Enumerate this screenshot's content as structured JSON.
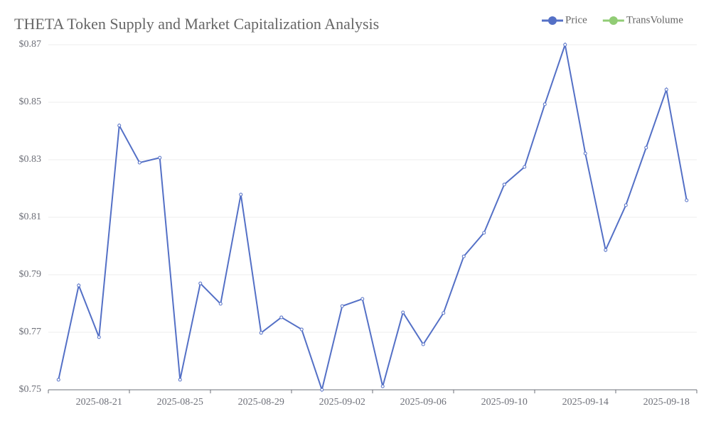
{
  "chart_data": {
    "type": "line",
    "title": "THETA Token Supply and Market Capitalization Analysis",
    "categories": [
      "2025-08-19",
      "2025-08-20",
      "2025-08-21",
      "2025-08-22",
      "2025-08-23",
      "2025-08-24",
      "2025-08-25",
      "2025-08-26",
      "2025-08-27",
      "2025-08-28",
      "2025-08-29",
      "2025-08-30",
      "2025-08-31",
      "2025-09-01",
      "2025-09-02",
      "2025-09-03",
      "2025-09-04",
      "2025-09-05",
      "2025-09-06",
      "2025-09-07",
      "2025-09-08",
      "2025-09-09",
      "2025-09-10",
      "2025-09-11",
      "2025-09-12",
      "2025-09-13",
      "2025-09-14",
      "2025-09-15",
      "2025-09-16",
      "2025-09-17",
      "2025-09-18",
      "2025-09-19"
    ],
    "series": [
      {
        "name": "Price",
        "color": "#5470c6",
        "values": [
          0.7535,
          0.7863,
          0.7683,
          0.8419,
          0.829,
          0.8307,
          0.7535,
          0.787,
          0.7799,
          0.8179,
          0.7698,
          0.7752,
          0.771,
          0.75,
          0.7791,
          0.7816,
          0.7512,
          0.7769,
          0.7658,
          0.7767,
          0.7964,
          0.8046,
          0.8214,
          0.8275,
          0.8493,
          0.87,
          0.8322,
          0.7986,
          0.8142,
          0.8342,
          0.8544,
          0.8159
        ]
      }
    ],
    "legend": [
      {
        "name": "Price",
        "color": "#5470c6"
      },
      {
        "name": "TransVolume",
        "color": "#91cc75"
      }
    ],
    "ylim": [
      0.75,
      0.87
    ],
    "yticks": [
      {
        "value": 0.75,
        "label": "$0.75"
      },
      {
        "value": 0.77,
        "label": "$0.77"
      },
      {
        "value": 0.79,
        "label": "$0.79"
      },
      {
        "value": 0.81,
        "label": "$0.81"
      },
      {
        "value": 0.83,
        "label": "$0.83"
      },
      {
        "value": 0.85,
        "label": "$0.85"
      },
      {
        "value": 0.87,
        "label": "$0.87"
      }
    ],
    "xlabel_start": 2,
    "xlabel_every": 4,
    "grid": true
  }
}
